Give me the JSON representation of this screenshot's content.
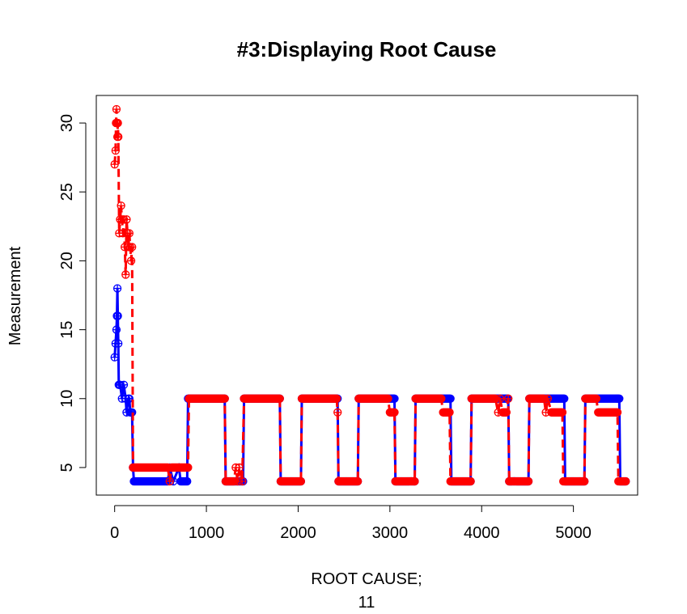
{
  "chart_data": {
    "type": "line",
    "title": "#3:Displaying Root Cause",
    "xlabel": "ROOT CAUSE;",
    "xlabel_line2": "11",
    "ylabel": "Measurement",
    "xlim": [
      -200,
      5700
    ],
    "ylim": [
      3,
      32
    ],
    "xticks": [
      0,
      1000,
      2000,
      3000,
      4000,
      5000
    ],
    "yticks": [
      5,
      10,
      15,
      20,
      25,
      30
    ],
    "grid": false,
    "legend": "none",
    "series": [
      {
        "color": "#0000ff",
        "line_style": "solid",
        "marker": "circle-plus",
        "points": [
          [
            0,
            13
          ],
          [
            10,
            14
          ],
          [
            20,
            15
          ],
          [
            25,
            16
          ],
          [
            30,
            18
          ],
          [
            35,
            16
          ],
          [
            40,
            14
          ],
          [
            45,
            11
          ],
          [
            60,
            11
          ],
          [
            80,
            10
          ],
          [
            100,
            11
          ],
          [
            120,
            10
          ],
          [
            130,
            9
          ],
          [
            150,
            10
          ],
          [
            160,
            10
          ],
          [
            170,
            9
          ],
          [
            180,
            9
          ],
          [
            190,
            9
          ],
          [
            200,
            5
          ],
          [
            210,
            4
          ],
          [
            500,
            4
          ],
          [
            580,
            4
          ],
          [
            600,
            5
          ],
          [
            640,
            4
          ],
          [
            700,
            5
          ],
          [
            720,
            4
          ],
          [
            790,
            4
          ],
          [
            800,
            10
          ],
          [
            1200,
            10
          ],
          [
            1210,
            4
          ],
          [
            1400,
            4
          ],
          [
            1410,
            10
          ],
          [
            1800,
            10
          ],
          [
            1810,
            4
          ],
          [
            2030,
            4
          ],
          [
            2040,
            10
          ],
          [
            2430,
            10
          ],
          [
            2440,
            4
          ],
          [
            2650,
            4
          ],
          [
            2660,
            10
          ],
          [
            3050,
            10
          ],
          [
            3060,
            4
          ],
          [
            3270,
            4
          ],
          [
            3280,
            10
          ],
          [
            3660,
            10
          ],
          [
            3670,
            4
          ],
          [
            3880,
            4
          ],
          [
            3890,
            10
          ],
          [
            4290,
            10
          ],
          [
            4300,
            4
          ],
          [
            4510,
            4
          ],
          [
            4520,
            10
          ],
          [
            4900,
            10
          ],
          [
            4910,
            4
          ],
          [
            5120,
            4
          ],
          [
            5130,
            10
          ],
          [
            5500,
            10
          ],
          [
            5510,
            4
          ],
          [
            5570,
            4
          ]
        ]
      },
      {
        "color": "#ff0000",
        "line_style": "dashed",
        "marker": "circle-plus",
        "points": [
          [
            0,
            27
          ],
          [
            10,
            28
          ],
          [
            15,
            30
          ],
          [
            20,
            31
          ],
          [
            25,
            30
          ],
          [
            30,
            29
          ],
          [
            35,
            30
          ],
          [
            40,
            29
          ],
          [
            50,
            22
          ],
          [
            60,
            23
          ],
          [
            70,
            24
          ],
          [
            80,
            23
          ],
          [
            90,
            22
          ],
          [
            100,
            23
          ],
          [
            110,
            21
          ],
          [
            120,
            19
          ],
          [
            130,
            23
          ],
          [
            140,
            22
          ],
          [
            150,
            21
          ],
          [
            160,
            22
          ],
          [
            170,
            21
          ],
          [
            180,
            20
          ],
          [
            190,
            21
          ],
          [
            200,
            5
          ],
          [
            260,
            5
          ],
          [
            500,
            5
          ],
          [
            580,
            5
          ],
          [
            600,
            4
          ],
          [
            620,
            5
          ],
          [
            800,
            5
          ],
          [
            810,
            10
          ],
          [
            1200,
            10
          ],
          [
            1210,
            4
          ],
          [
            1300,
            4
          ],
          [
            1320,
            5
          ],
          [
            1340,
            4
          ],
          [
            1360,
            5
          ],
          [
            1390,
            4
          ],
          [
            1410,
            10
          ],
          [
            1800,
            10
          ],
          [
            1810,
            4
          ],
          [
            2030,
            4
          ],
          [
            2040,
            10
          ],
          [
            2420,
            10
          ],
          [
            2430,
            9
          ],
          [
            2440,
            4
          ],
          [
            2650,
            4
          ],
          [
            2660,
            10
          ],
          [
            2980,
            10
          ],
          [
            3000,
            9
          ],
          [
            3050,
            9
          ],
          [
            3060,
            4
          ],
          [
            3270,
            4
          ],
          [
            3280,
            10
          ],
          [
            3560,
            10
          ],
          [
            3580,
            9
          ],
          [
            3650,
            9
          ],
          [
            3660,
            4
          ],
          [
            3880,
            4
          ],
          [
            3890,
            10
          ],
          [
            4150,
            10
          ],
          [
            4180,
            9
          ],
          [
            4200,
            10
          ],
          [
            4230,
            9
          ],
          [
            4270,
            9
          ],
          [
            4290,
            10
          ],
          [
            4300,
            4
          ],
          [
            4510,
            4
          ],
          [
            4520,
            10
          ],
          [
            4680,
            10
          ],
          [
            4700,
            9
          ],
          [
            4720,
            10
          ],
          [
            4760,
            9
          ],
          [
            4880,
            9
          ],
          [
            4890,
            4
          ],
          [
            5120,
            4
          ],
          [
            5130,
            10
          ],
          [
            5250,
            10
          ],
          [
            5270,
            9
          ],
          [
            5480,
            9
          ],
          [
            5490,
            4
          ],
          [
            5570,
            4
          ]
        ]
      }
    ]
  }
}
